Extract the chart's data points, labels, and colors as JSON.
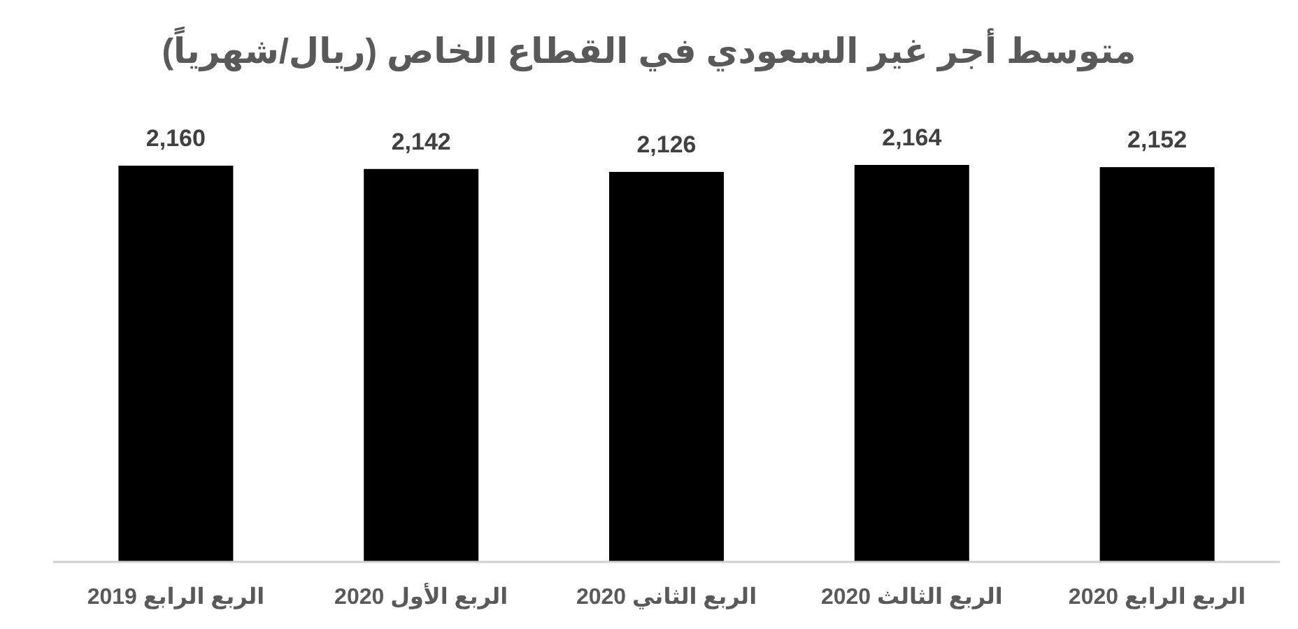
{
  "chart_data": {
    "type": "bar",
    "title": "متوسط أجر غير السعودي في القطاع الخاص (ريال/شهرياً)",
    "categories": [
      "الربع الرابع 2019",
      "الربع الأول 2020",
      "الربع الثاني 2020",
      "الربع الثالث 2020",
      "الربع الرابع 2020"
    ],
    "values": [
      2160,
      2142,
      2126,
      2164,
      2152
    ],
    "value_labels": [
      "2,160",
      "2,142",
      "2,126",
      "2,164",
      "2,152"
    ],
    "color": "#000000"
  }
}
